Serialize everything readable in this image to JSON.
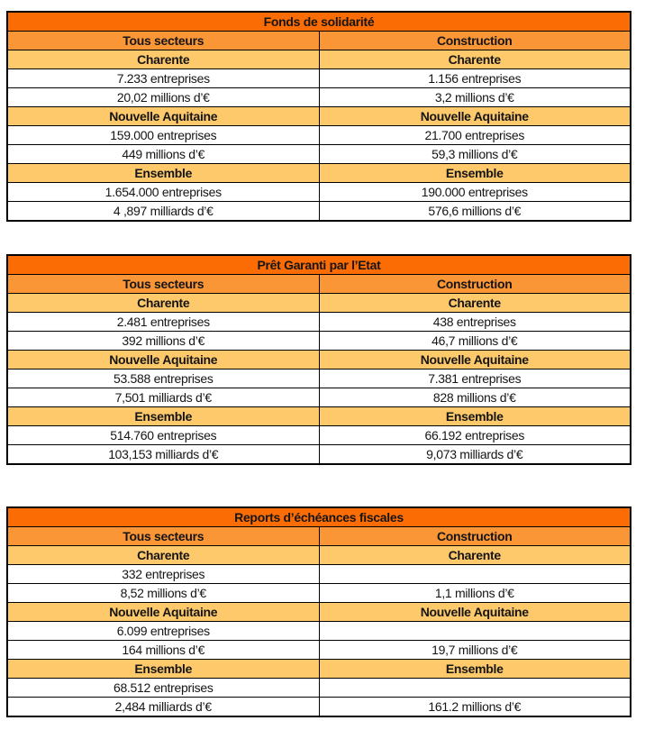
{
  "colors": {
    "title_bg": "#FB6C04",
    "subheader_bg": "#FB9637",
    "region_bg": "#FDC96B",
    "border": "#000000",
    "text": "#151515",
    "page_bg": "#FFFFFF"
  },
  "tables": [
    {
      "title": "Fonds de solidarité",
      "col1": "Tous secteurs",
      "col2": "Construction",
      "sections": [
        {
          "h1": "Charente",
          "h2": "Charente",
          "r1c1": "7.233 entreprises",
          "r1c2": "1.156 entreprises",
          "r2c1": "20,02 millions d’€",
          "r2c2": "3,2 millions d’€"
        },
        {
          "h1": "Nouvelle Aquitaine",
          "h2": "Nouvelle Aquitaine",
          "r1c1": "159.000 entreprises",
          "r1c2": "21.700 entreprises",
          "r2c1": "449 millions d’€",
          "r2c2": "59,3 millions d’€"
        },
        {
          "h1": "Ensemble",
          "h2": "Ensemble",
          "r1c1": "1.654.000 entreprises",
          "r1c2": "190.000 entreprises",
          "r2c1": "4 ,897 milliards d’€",
          "r2c2": "576,6 millions d’€"
        }
      ]
    },
    {
      "title": "Prêt Garanti par l’Etat",
      "col1": "Tous secteurs",
      "col2": "Construction",
      "sections": [
        {
          "h1": "Charente",
          "h2": "Charente",
          "r1c1": "2.481 entreprises",
          "r1c2": "438 entreprises",
          "r2c1": "392 millions d’€",
          "r2c2": "46,7 millions d’€"
        },
        {
          "h1": "Nouvelle Aquitaine",
          "h2": "Nouvelle Aquitaine",
          "r1c1": "53.588 entreprises",
          "r1c2": "7.381 entreprises",
          "r2c1": "7,501 milliards d’€",
          "r2c2": "828 millions d’€"
        },
        {
          "h1": "Ensemble",
          "h2": "Ensemble",
          "r1c1": "514.760 entreprises",
          "r1c2": "66.192 entreprises",
          "r2c1": "103,153 milliards d’€",
          "r2c2": "9,073 milliards d’€"
        }
      ]
    },
    {
      "title": "Reports d’échéances fiscales",
      "col1": "Tous secteurs",
      "col2": "Construction",
      "sections": [
        {
          "h1": "Charente",
          "h2": "Charente",
          "r1c1": "332 entreprises",
          "r1c2": "",
          "r2c1": "8,52 millions d’€",
          "r2c2": "1,1 millions d’€"
        },
        {
          "h1": "Nouvelle Aquitaine",
          "h2": "Nouvelle Aquitaine",
          "r1c1": "6.099 entreprises",
          "r1c2": "",
          "r2c1": "164 millions d’€",
          "r2c2": "19,7 millions d’€"
        },
        {
          "h1": "Ensemble",
          "h2": "Ensemble",
          "r1c1": "68.512 entreprises",
          "r1c2": "",
          "r2c1": "2,484 milliards d’€",
          "r2c2": "161.2 millions d’€"
        }
      ]
    }
  ]
}
